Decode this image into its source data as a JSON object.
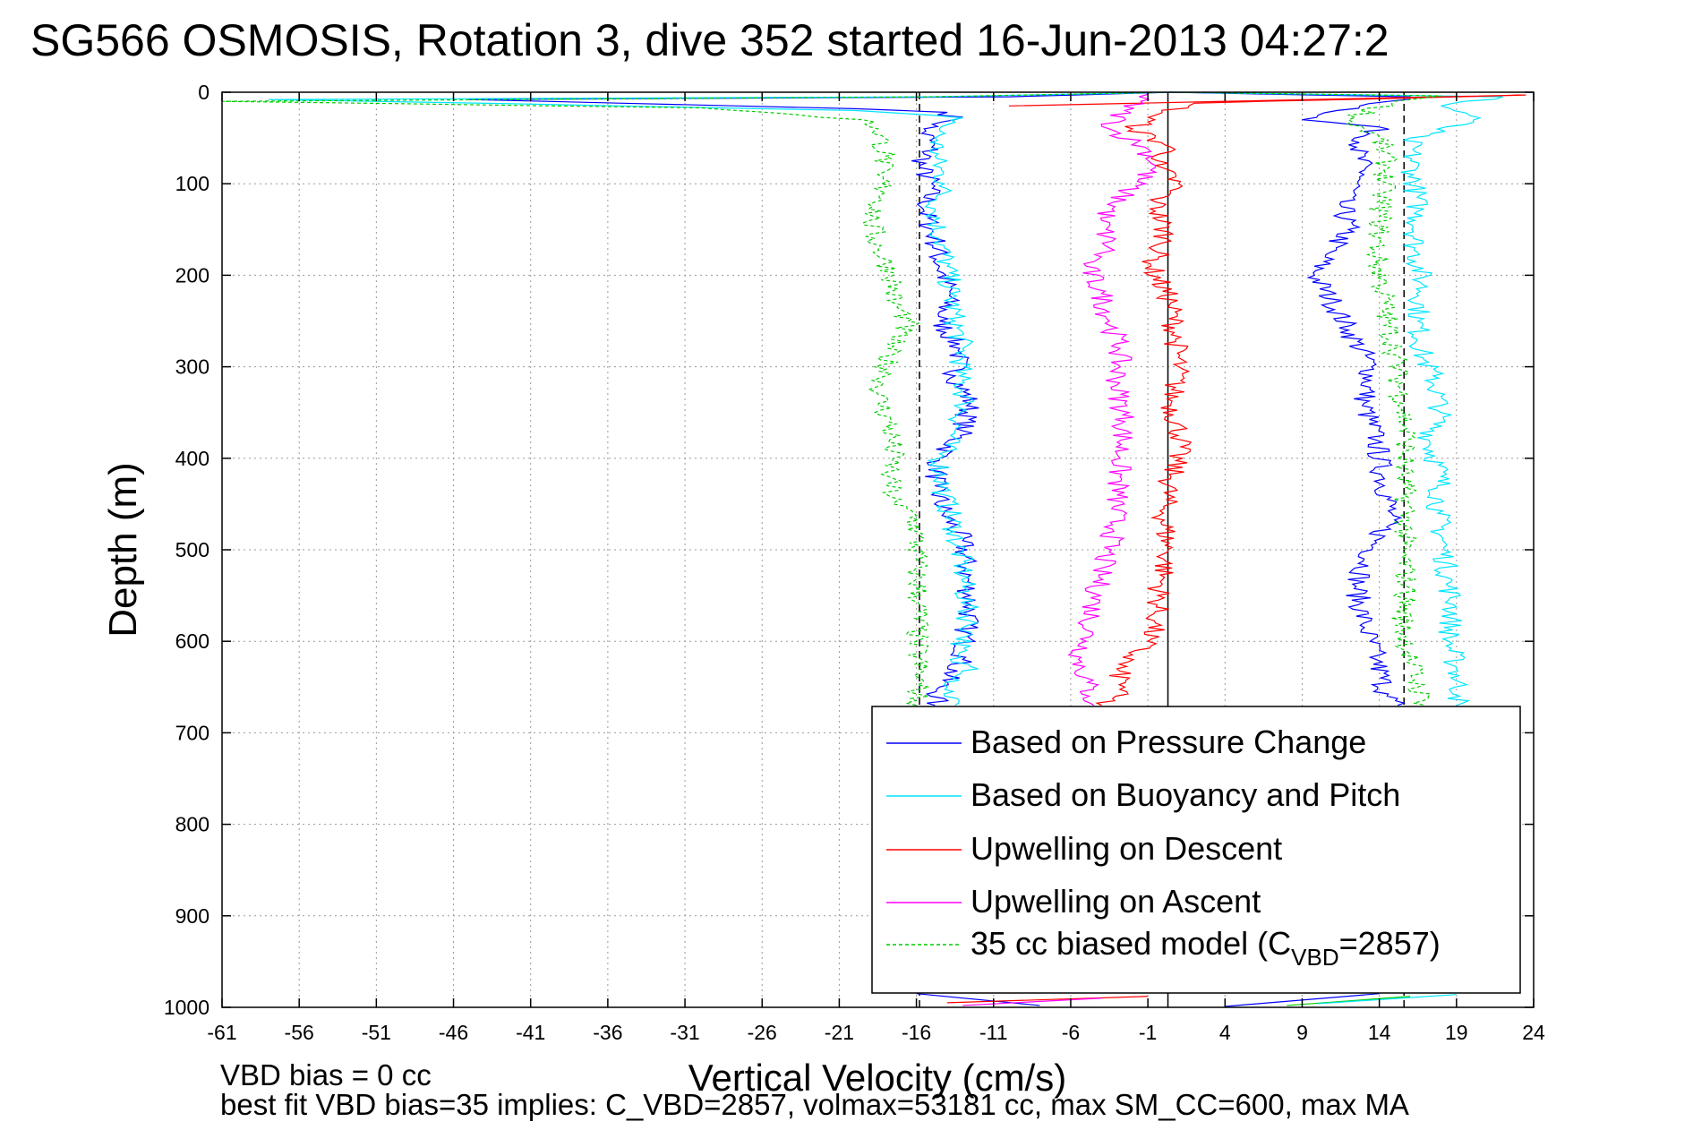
{
  "chart_data": {
    "type": "line",
    "title": "SG566 OSMOSIS, Rotation 3, dive 352 started 16-Jun-2013 04:27:2",
    "xlabel": "Vertical Velocity (cm/s)",
    "ylabel": "Depth (m)",
    "xlim": [
      -61,
      24
    ],
    "ylim": [
      0,
      1000
    ],
    "y_reversed": true,
    "grid": true,
    "xticks": [
      -61,
      -56,
      -51,
      -46,
      -41,
      -36,
      -31,
      -26,
      -21,
      -16,
      -11,
      -6,
      -1,
      4,
      9,
      14,
      19,
      24
    ],
    "yticks": [
      0,
      100,
      200,
      300,
      400,
      500,
      600,
      700,
      800,
      900,
      1000
    ],
    "reference_lines": [
      {
        "x": -15.8,
        "style": "dashed",
        "color": "#000000"
      },
      {
        "x": 0.3,
        "style": "solid",
        "color": "#000000"
      },
      {
        "x": 15.6,
        "style": "dashed",
        "color": "#000000"
      }
    ],
    "legend_position": "bottom-right",
    "series": [
      {
        "name": "Based on Pressure Change",
        "color": "#0000ff",
        "style": "solid",
        "points": [
          [
            [
              0.5,
              0
            ],
            [
              -10,
              5
            ],
            [
              -45,
              8
            ],
            [
              -35,
              12
            ],
            [
              -20,
              18
            ],
            [
              -14,
              22
            ],
            [
              -13.5,
              30
            ],
            [
              -15.5,
              40
            ],
            [
              -15,
              60
            ],
            [
              -15.8,
              80
            ],
            [
              -15,
              100
            ],
            [
              -15.5,
              130
            ],
            [
              -14.8,
              160
            ],
            [
              -14.5,
              190
            ],
            [
              -13.8,
              220
            ],
            [
              -14.5,
              250
            ],
            [
              -13.2,
              280
            ],
            [
              -13.5,
              310
            ],
            [
              -12.5,
              340
            ],
            [
              -13,
              370
            ],
            [
              -14.5,
              400
            ],
            [
              -14.8,
              430
            ],
            [
              -14.2,
              460
            ],
            [
              -13,
              490
            ],
            [
              -12.8,
              520
            ],
            [
              -12.5,
              560
            ],
            [
              -12.8,
              590
            ],
            [
              -13,
              620
            ],
            [
              -14.5,
              650
            ],
            [
              -14.8,
              670
            ]
          ],
          [
            [
              0.5,
              0
            ],
            [
              16,
              5
            ],
            [
              9,
              30
            ],
            [
              14,
              38
            ],
            [
              12.5,
              60
            ],
            [
              13,
              90
            ],
            [
              11.5,
              120
            ],
            [
              12,
              150
            ],
            [
              10.5,
              180
            ],
            [
              9.8,
              200
            ],
            [
              11,
              230
            ],
            [
              12,
              260
            ],
            [
              13.5,
              300
            ],
            [
              13,
              340
            ],
            [
              13.8,
              380
            ],
            [
              14.2,
              420
            ],
            [
              14.8,
              460
            ],
            [
              13.5,
              500
            ],
            [
              12.5,
              540
            ],
            [
              13,
              580
            ],
            [
              13.8,
              620
            ],
            [
              14.5,
              660
            ],
            [
              15.2,
              670
            ]
          ]
        ]
      },
      {
        "name": "Based on Buoyancy and Pitch",
        "color": "#00e5ff",
        "style": "solid",
        "points": [
          [
            [
              0.5,
              0
            ],
            [
              -15,
              5
            ],
            [
              -58,
              8
            ],
            [
              -35,
              15
            ],
            [
              -20,
              20
            ],
            [
              -15,
              25
            ],
            [
              -13,
              28
            ],
            [
              -14.5,
              40
            ],
            [
              -14.8,
              70
            ],
            [
              -14.2,
              100
            ],
            [
              -14.8,
              130
            ],
            [
              -14.5,
              160
            ],
            [
              -14,
              190
            ],
            [
              -13.8,
              220
            ],
            [
              -13.5,
              250
            ],
            [
              -13,
              280
            ],
            [
              -13.2,
              310
            ],
            [
              -12.8,
              340
            ],
            [
              -13.5,
              370
            ],
            [
              -14.5,
              400
            ],
            [
              -14.2,
              440
            ],
            [
              -13.5,
              480
            ],
            [
              -13,
              520
            ],
            [
              -12.8,
              560
            ],
            [
              -12.5,
              590
            ],
            [
              -13.8,
              620
            ],
            [
              -12,
              630
            ],
            [
              -14,
              650
            ],
            [
              -13.5,
              670
            ]
          ],
          [
            [
              0.5,
              0
            ],
            [
              22,
              5
            ],
            [
              18,
              15
            ],
            [
              20.5,
              28
            ],
            [
              16,
              50
            ],
            [
              16.2,
              90
            ],
            [
              16.5,
              130
            ],
            [
              16.3,
              170
            ],
            [
              16.8,
              210
            ],
            [
              16.5,
              250
            ],
            [
              16.8,
              290
            ],
            [
              17.5,
              310
            ],
            [
              18,
              350
            ],
            [
              17.2,
              380
            ],
            [
              18,
              420
            ],
            [
              17.8,
              460
            ],
            [
              18.2,
              500
            ],
            [
              18.5,
              540
            ],
            [
              18.8,
              560
            ],
            [
              18.5,
              600
            ],
            [
              19,
              630
            ],
            [
              19.2,
              660
            ],
            [
              19,
              670
            ]
          ]
        ]
      },
      {
        "name": "Upwelling on Descent",
        "color": "#ff0000",
        "style": "solid",
        "points": [
          [
            [
              -10,
              15
            ],
            [
              23.5,
              3
            ],
            [
              2,
              12
            ],
            [
              -0.5,
              25
            ],
            [
              -2,
              40
            ],
            [
              0.5,
              60
            ],
            [
              -0.5,
              80
            ],
            [
              1,
              100
            ],
            [
              -0.5,
              120
            ],
            [
              0.2,
              160
            ],
            [
              -0.8,
              190
            ],
            [
              0.5,
              230
            ],
            [
              0.8,
              270
            ],
            [
              1,
              300
            ],
            [
              0.5,
              340
            ],
            [
              1.2,
              380
            ],
            [
              0.5,
              420
            ],
            [
              0,
              460
            ],
            [
              0.3,
              500
            ],
            [
              -0.2,
              540
            ],
            [
              -0.5,
              580
            ],
            [
              -1,
              600
            ],
            [
              -3,
              630
            ],
            [
              -2.5,
              650
            ],
            [
              -4,
              670
            ]
          ]
        ]
      },
      {
        "name": "Upwelling on Ascent",
        "color": "#ff00ff",
        "style": "solid",
        "points": [
          [
            [
              -1,
              0
            ],
            [
              -2.5,
              20
            ],
            [
              -3.5,
              40
            ],
            [
              -1.2,
              60
            ],
            [
              -0.5,
              80
            ],
            [
              -2.5,
              110
            ],
            [
              -4,
              140
            ],
            [
              -3.5,
              170
            ],
            [
              -5,
              190
            ],
            [
              -4,
              220
            ],
            [
              -3.5,
              250
            ],
            [
              -2.8,
              280
            ],
            [
              -3,
              320
            ],
            [
              -2.5,
              360
            ],
            [
              -2.8,
              400
            ],
            [
              -3,
              440
            ],
            [
              -3.2,
              480
            ],
            [
              -4,
              520
            ],
            [
              -4.5,
              560
            ],
            [
              -5,
              600
            ],
            [
              -5.5,
              620
            ],
            [
              -5,
              640
            ],
            [
              -4.8,
              660
            ],
            [
              -4.5,
              670
            ]
          ]
        ]
      },
      {
        "name": "35 cc biased model (C",
        "color": "#00cc00",
        "style": "dashed",
        "points": [
          [
            [
              0.5,
              0
            ],
            [
              -15,
              5
            ],
            [
              -61,
              10
            ],
            [
              -30,
              17
            ],
            [
              -19.5,
              30
            ],
            [
              -18.5,
              40
            ],
            [
              -18,
              70
            ],
            [
              -18.5,
              90
            ],
            [
              -18,
              110
            ],
            [
              -19,
              140
            ],
            [
              -18.5,
              170
            ],
            [
              -17.5,
              200
            ],
            [
              -17.5,
              230
            ],
            [
              -16.5,
              250
            ],
            [
              -17.8,
              280
            ],
            [
              -18,
              310
            ],
            [
              -18.5,
              330
            ],
            [
              -17.8,
              360
            ],
            [
              -17.5,
              400
            ],
            [
              -17.8,
              420
            ],
            [
              -17.5,
              450
            ],
            [
              -16.2,
              460
            ],
            [
              -16,
              480
            ],
            [
              -16,
              520
            ],
            [
              -15.8,
              560
            ],
            [
              -16,
              600
            ],
            [
              -15.8,
              640
            ],
            [
              -16,
              670
            ]
          ],
          [
            [
              0.5,
              0
            ],
            [
              18,
              4
            ],
            [
              15,
              10
            ],
            [
              12,
              30
            ],
            [
              14,
              50
            ],
            [
              14.5,
              80
            ],
            [
              14.2,
              110
            ],
            [
              14,
              150
            ],
            [
              13.8,
              180
            ],
            [
              14.2,
              210
            ],
            [
              14.5,
              250
            ],
            [
              15,
              280
            ],
            [
              15.2,
              310
            ],
            [
              15.5,
              340
            ],
            [
              15.8,
              380
            ],
            [
              15.5,
              420
            ],
            [
              15.8,
              460
            ],
            [
              15.5,
              500
            ],
            [
              15.8,
              540
            ],
            [
              15.5,
              580
            ],
            [
              16,
              620
            ],
            [
              16.5,
              650
            ],
            [
              17,
              670
            ]
          ]
        ]
      }
    ],
    "bottom_series_fragments": {
      "note_visible": true
    }
  },
  "legend_subscript": "VBD",
  "legend_suffix": "=2857)",
  "footnote_line1": "VBD bias = 0 cc",
  "footnote_line2": "best fit VBD bias=35 implies: C_VBD=2857, volmax=53181 cc, max SM_CC=600, max MA"
}
